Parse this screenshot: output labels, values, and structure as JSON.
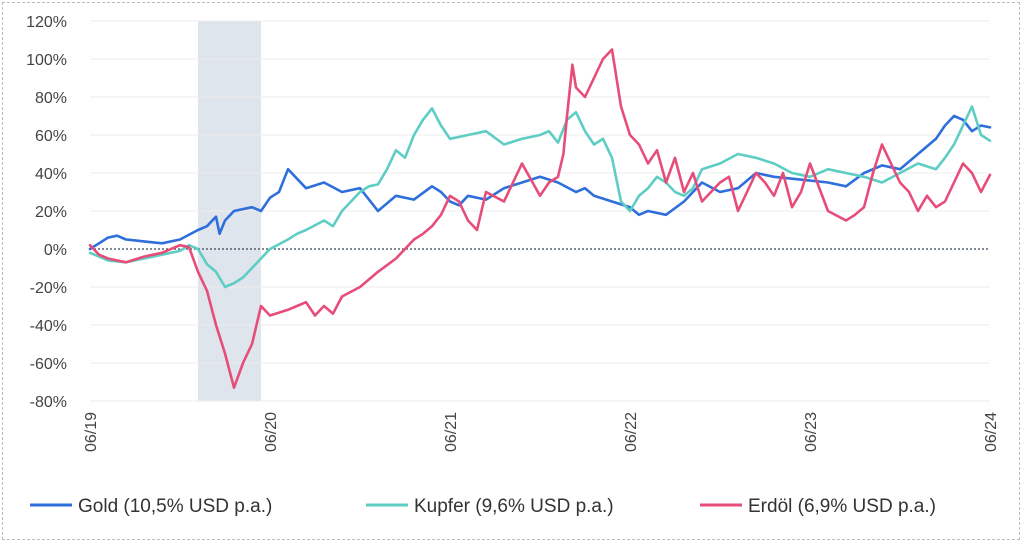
{
  "chart_data": {
    "type": "line",
    "title": "",
    "xlabel": "",
    "ylabel": "",
    "ylim": [
      -80,
      120
    ],
    "yticks": [
      120,
      100,
      80,
      60,
      40,
      20,
      0,
      -20,
      -40,
      -60,
      -80
    ],
    "ytick_labels": [
      "120%",
      "100%",
      "80%",
      "60%",
      "40%",
      "20%",
      "0%",
      "-20%",
      "-40%",
      "-60%",
      "-80%"
    ],
    "xlim": [
      2019.0,
      2024.0
    ],
    "xticks": [
      2019.0,
      2020.0,
      2021.0,
      2022.0,
      2023.0,
      2024.0
    ],
    "xtick_labels": [
      "06/19",
      "06/20",
      "06/21",
      "06/22",
      "06/23",
      "06/24"
    ],
    "shaded_period": [
      2019.6,
      2019.95
    ],
    "zero_line": true,
    "grid": "horizontal",
    "legend_position": "bottom",
    "series": [
      {
        "name": "Gold (10,5% USD p.a.)",
        "color": "#2f6fdc",
        "x": [
          2019.0,
          2019.05,
          2019.1,
          2019.15,
          2019.2,
          2019.3,
          2019.4,
          2019.5,
          2019.6,
          2019.65,
          2019.7,
          2019.72,
          2019.75,
          2019.8,
          2019.9,
          2019.95,
          2020.0,
          2020.05,
          2020.1,
          2020.15,
          2020.2,
          2020.3,
          2020.4,
          2020.5,
          2020.6,
          2020.7,
          2020.8,
          2020.9,
          2020.95,
          2021.0,
          2021.05,
          2021.1,
          2021.2,
          2021.3,
          2021.4,
          2021.5,
          2021.6,
          2021.7,
          2021.75,
          2021.8,
          2021.9,
          2022.0,
          2022.05,
          2022.1,
          2022.2,
          2022.3,
          2022.4,
          2022.5,
          2022.6,
          2022.7,
          2022.8,
          2022.9,
          2023.0,
          2023.1,
          2023.2,
          2023.3,
          2023.4,
          2023.5,
          2023.6,
          2023.7,
          2023.75,
          2023.8,
          2023.85,
          2023.9,
          2023.95,
          2024.0
        ],
        "values": [
          0,
          3,
          6,
          7,
          5,
          4,
          3,
          5,
          10,
          12,
          17,
          8,
          15,
          20,
          22,
          20,
          27,
          30,
          42,
          37,
          32,
          35,
          30,
          32,
          20,
          28,
          26,
          33,
          30,
          25,
          23,
          28,
          26,
          32,
          35,
          38,
          35,
          30,
          32,
          28,
          25,
          22,
          18,
          20,
          18,
          25,
          35,
          30,
          32,
          40,
          38,
          37,
          36,
          35,
          33,
          40,
          44,
          42,
          50,
          58,
          65,
          70,
          68,
          62,
          65,
          64
        ]
      },
      {
        "name": "Kupfer (9,6% USD p.a.)",
        "color": "#5ecdc4",
        "x": [
          2019.0,
          2019.05,
          2019.1,
          2019.2,
          2019.3,
          2019.4,
          2019.5,
          2019.55,
          2019.6,
          2019.65,
          2019.7,
          2019.75,
          2019.8,
          2019.85,
          2019.9,
          2019.95,
          2020.0,
          2020.1,
          2020.15,
          2020.2,
          2020.3,
          2020.35,
          2020.4,
          2020.45,
          2020.5,
          2020.55,
          2020.6,
          2020.65,
          2020.7,
          2020.75,
          2020.8,
          2020.85,
          2020.9,
          2020.95,
          2021.0,
          2021.1,
          2021.2,
          2021.3,
          2021.4,
          2021.5,
          2021.55,
          2021.6,
          2021.65,
          2021.7,
          2021.75,
          2021.8,
          2021.85,
          2021.9,
          2021.95,
          2022.0,
          2022.05,
          2022.1,
          2022.15,
          2022.2,
          2022.25,
          2022.3,
          2022.35,
          2022.4,
          2022.5,
          2022.6,
          2022.7,
          2022.8,
          2022.9,
          2023.0,
          2023.1,
          2023.2,
          2023.3,
          2023.4,
          2023.5,
          2023.6,
          2023.7,
          2023.75,
          2023.8,
          2023.85,
          2023.9,
          2023.95,
          2024.0
        ],
        "values": [
          -2,
          -4,
          -6,
          -7,
          -5,
          -3,
          -1,
          2,
          0,
          -8,
          -12,
          -20,
          -18,
          -15,
          -10,
          -5,
          0,
          5,
          8,
          10,
          15,
          12,
          20,
          25,
          30,
          33,
          34,
          42,
          52,
          48,
          60,
          68,
          74,
          65,
          58,
          60,
          62,
          55,
          58,
          60,
          62,
          56,
          68,
          72,
          62,
          55,
          58,
          48,
          25,
          20,
          28,
          32,
          38,
          35,
          30,
          28,
          32,
          42,
          45,
          50,
          48,
          45,
          40,
          38,
          42,
          40,
          38,
          35,
          40,
          45,
          42,
          48,
          55,
          65,
          75,
          60,
          57
        ]
      },
      {
        "name": "Erdöl (6,9% USD p.a.)",
        "color": "#e64d78",
        "x": [
          2019.0,
          2019.05,
          2019.1,
          2019.2,
          2019.3,
          2019.4,
          2019.5,
          2019.55,
          2019.6,
          2019.65,
          2019.7,
          2019.75,
          2019.8,
          2019.85,
          2019.9,
          2019.95,
          2020.0,
          2020.1,
          2020.15,
          2020.2,
          2020.25,
          2020.3,
          2020.35,
          2020.4,
          2020.5,
          2020.6,
          2020.7,
          2020.75,
          2020.8,
          2020.85,
          2020.9,
          2020.95,
          2021.0,
          2021.05,
          2021.1,
          2021.15,
          2021.2,
          2021.3,
          2021.4,
          2021.5,
          2021.55,
          2021.6,
          2021.63,
          2021.65,
          2021.68,
          2021.7,
          2021.75,
          2021.8,
          2021.85,
          2021.9,
          2021.95,
          2022.0,
          2022.05,
          2022.1,
          2022.15,
          2022.2,
          2022.25,
          2022.3,
          2022.35,
          2022.4,
          2022.5,
          2022.55,
          2022.6,
          2022.65,
          2022.7,
          2022.75,
          2022.8,
          2022.85,
          2022.9,
          2022.95,
          2023.0,
          2023.1,
          2023.2,
          2023.25,
          2023.3,
          2023.35,
          2023.4,
          2023.45,
          2023.5,
          2023.55,
          2023.6,
          2023.65,
          2023.7,
          2023.75,
          2023.8,
          2023.85,
          2023.9,
          2023.95,
          2024.0
        ],
        "values": [
          2,
          -3,
          -5,
          -7,
          -4,
          -2,
          2,
          1,
          -12,
          -22,
          -40,
          -55,
          -73,
          -60,
          -50,
          -30,
          -35,
          -32,
          -30,
          -28,
          -35,
          -30,
          -34,
          -25,
          -20,
          -12,
          -5,
          0,
          5,
          8,
          12,
          18,
          28,
          25,
          15,
          10,
          30,
          25,
          45,
          28,
          35,
          38,
          50,
          70,
          97,
          85,
          80,
          90,
          100,
          105,
          75,
          60,
          55,
          45,
          52,
          35,
          48,
          30,
          40,
          25,
          35,
          38,
          20,
          30,
          40,
          35,
          28,
          40,
          22,
          30,
          45,
          20,
          15,
          18,
          22,
          40,
          55,
          45,
          35,
          30,
          20,
          28,
          22,
          25,
          35,
          45,
          40,
          30,
          39
        ]
      }
    ]
  },
  "legend": {
    "items": [
      {
        "label": "Gold (10,5% USD p.a.)",
        "color": "#2f6fdc"
      },
      {
        "label": "Kupfer (9,6% USD p.a.)",
        "color": "#5ecdc4"
      },
      {
        "label": "Erdöl (6,9% USD p.a.)",
        "color": "#e64d78"
      }
    ]
  },
  "colors": {
    "grid": "#ececec",
    "zero_line": "#334455",
    "shade": "#dfe5ec"
  }
}
